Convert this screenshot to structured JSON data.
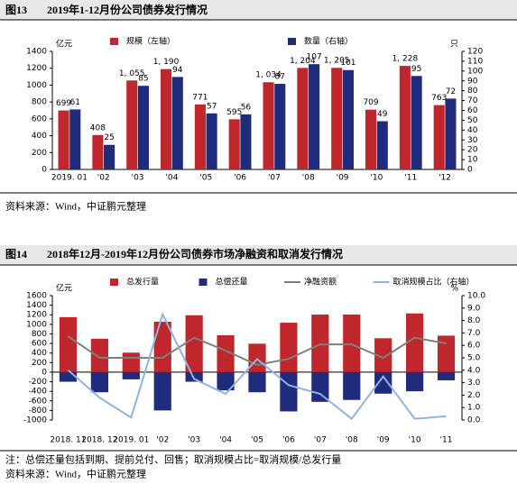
{
  "chart_data": [
    {
      "type": "bar",
      "figure_label": "图13",
      "title": "2019年1-12月份公司债券发行情况",
      "categories": [
        "2019. 01",
        "'02",
        "'03",
        "'04",
        "'05",
        "'06",
        "'07",
        "'08",
        "'09",
        "'10",
        "'11",
        "'12"
      ],
      "series": [
        {
          "name": "规模（左轴）",
          "color": "#c0272d",
          "values": [
            699,
            408,
            1055,
            1190,
            771,
            595,
            1034,
            1204,
            1205,
            709,
            1228,
            763
          ],
          "value_labels": [
            "699",
            "408",
            "1, 055",
            "1, 190",
            "771",
            "595",
            "1, 034",
            "1, 204",
            "1, 205",
            "709",
            "1, 228",
            "763"
          ]
        },
        {
          "name": "数量（右轴）",
          "color": "#1f2b7b",
          "axis": "y2",
          "values": [
            61,
            25,
            85,
            94,
            57,
            56,
            87,
            107,
            101,
            49,
            95,
            72
          ]
        }
      ],
      "ylabel": "亿元",
      "y2label": "只",
      "ylim": [
        0,
        1400
      ],
      "yticks": [
        0,
        200,
        400,
        600,
        800,
        1000,
        1200,
        1400
      ],
      "y2lim": [
        0,
        120
      ],
      "y2ticks": [
        0,
        10,
        20,
        30,
        40,
        50,
        60,
        70,
        80,
        90,
        100,
        110,
        120
      ],
      "source": "资料来源：Wind，中证鹏元整理"
    },
    {
      "type": "combo",
      "figure_label": "图14",
      "title": "2018年12月-2019年12月份公司债券市场净融资和取消发行情况",
      "categories": [
        "2018. 11",
        "2018. 12",
        "2019. 01",
        "'02",
        "'03",
        "'04",
        "'05",
        "'06",
        "'07",
        "'08",
        "'09",
        "'10",
        "'11"
      ],
      "series": [
        {
          "name": "总发行量",
          "type": "bar",
          "color": "#c0272d",
          "values": [
            1150,
            699,
            408,
            1055,
            1190,
            771,
            595,
            1034,
            1204,
            1205,
            709,
            1228,
            763
          ]
        },
        {
          "name": "总偿还量",
          "type": "bar",
          "color": "#1f2b7b",
          "values": [
            -200,
            -420,
            -150,
            -800,
            -200,
            -380,
            -420,
            -820,
            -620,
            -580,
            -450,
            -400,
            -170
          ]
        },
        {
          "name": "净融资额",
          "type": "line",
          "color": "#7f7f7f",
          "values": [
            750,
            300,
            300,
            300,
            720,
            450,
            150,
            280,
            580,
            580,
            300,
            720,
            600
          ]
        },
        {
          "name": "取消规模占比（右轴）",
          "type": "line",
          "color": "#8fb4e3",
          "axis": "y2",
          "values": [
            4.0,
            1.8,
            0.2,
            8.5,
            3.3,
            2.1,
            4.9,
            2.8,
            2.1,
            0.1,
            3.5,
            0.1,
            0.3
          ]
        }
      ],
      "ylabel": "亿元",
      "y2label": "%",
      "ylim": [
        -1000,
        1600
      ],
      "yticks": [
        -1000,
        -800,
        -600,
        -400,
        -200,
        0,
        200,
        400,
        600,
        800,
        1000,
        1200,
        1400,
        1600
      ],
      "y2lim": [
        0,
        10
      ],
      "y2ticks": [
        {
          "value": 0,
          "label": "0.0"
        },
        {
          "value": 1,
          "label": "1.0"
        },
        {
          "value": 2,
          "label": "2.0"
        },
        {
          "value": 3,
          "label": "3.0"
        },
        {
          "value": 4,
          "label": "4.0"
        },
        {
          "value": 5,
          "label": "5.0"
        },
        {
          "value": 6,
          "label": "6.0"
        },
        {
          "value": 7,
          "label": "7.0"
        },
        {
          "value": 8,
          "label": "8.0"
        },
        {
          "value": 9,
          "label": "9.0"
        },
        {
          "value": 10,
          "label": "10.0"
        }
      ],
      "note": "注：总偿还量包括到期、提前兑付、回售；取消规模占比=取消规模/总发行量",
      "source": "资料来源：Wind，中证鹏元整理"
    }
  ]
}
